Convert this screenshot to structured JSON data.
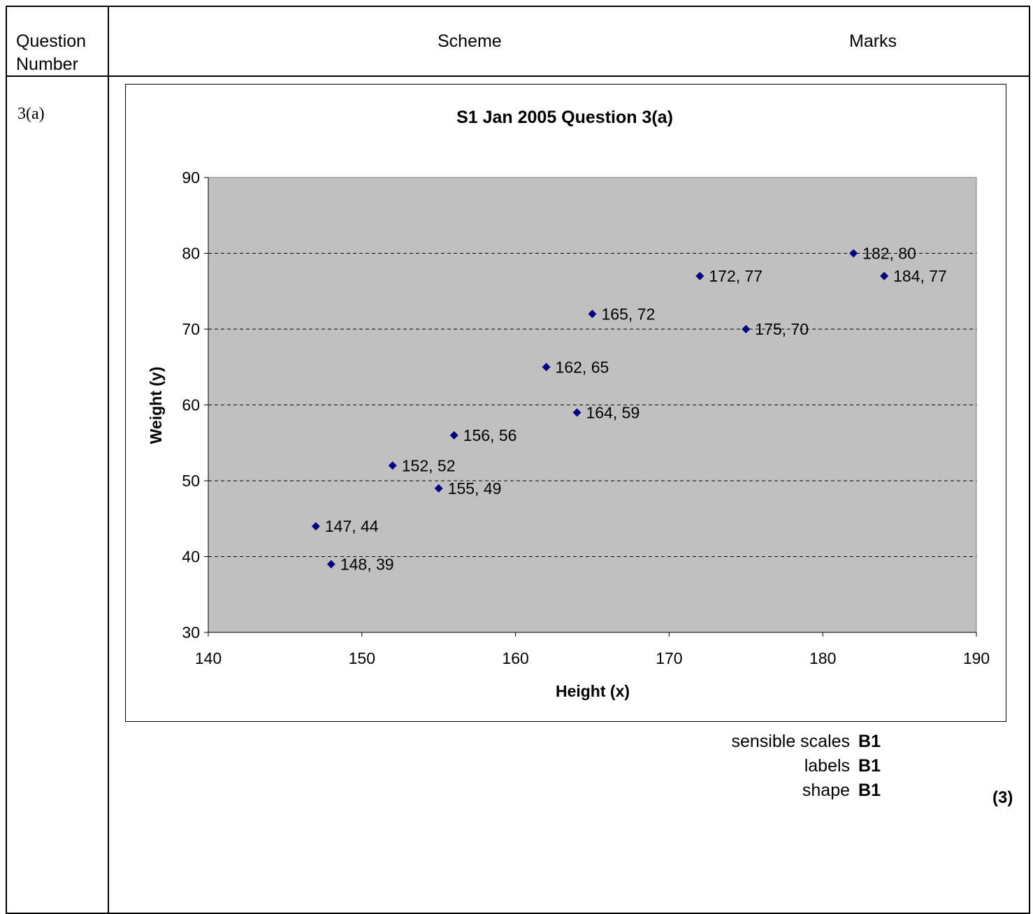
{
  "header": {
    "question_number": "Question Number",
    "question_line1": "Question",
    "question_line2": "Number",
    "scheme": "Scheme",
    "marks": "Marks"
  },
  "question": {
    "number": "3(a)"
  },
  "chart_data": {
    "type": "scatter",
    "title": "S1 Jan 2005 Question 3(a)",
    "xlabel": "Height (x)",
    "ylabel": "Weight (y)",
    "xlim": [
      140,
      190
    ],
    "ylim": [
      30,
      90
    ],
    "xticks": [
      140,
      150,
      160,
      170,
      180,
      190
    ],
    "yticks": [
      30,
      40,
      50,
      60,
      70,
      80,
      90
    ],
    "grid": "horizontal dashed",
    "plot_background": "#c0c0c0",
    "marker_color": "#000080",
    "points": [
      {
        "x": 147,
        "y": 44,
        "label": "147, 44"
      },
      {
        "x": 148,
        "y": 39,
        "label": "148, 39"
      },
      {
        "x": 152,
        "y": 52,
        "label": "152, 52"
      },
      {
        "x": 155,
        "y": 49,
        "label": "155, 49"
      },
      {
        "x": 156,
        "y": 56,
        "label": "156, 56"
      },
      {
        "x": 162,
        "y": 65,
        "label": "162, 65"
      },
      {
        "x": 164,
        "y": 59,
        "label": "164, 59"
      },
      {
        "x": 165,
        "y": 72,
        "label": "165, 72"
      },
      {
        "x": 172,
        "y": 77,
        "label": "172, 77"
      },
      {
        "x": 175,
        "y": 70,
        "label": "175, 70"
      },
      {
        "x": 182,
        "y": 80,
        "label": "182, 80"
      },
      {
        "x": 184,
        "y": 77,
        "label": "184, 77"
      }
    ]
  },
  "marks": {
    "items": [
      {
        "text": "sensible scales",
        "mark": "B1"
      },
      {
        "text": "labels",
        "mark": "B1"
      },
      {
        "text": "shape",
        "mark": "B1"
      }
    ],
    "total": "(3)"
  }
}
